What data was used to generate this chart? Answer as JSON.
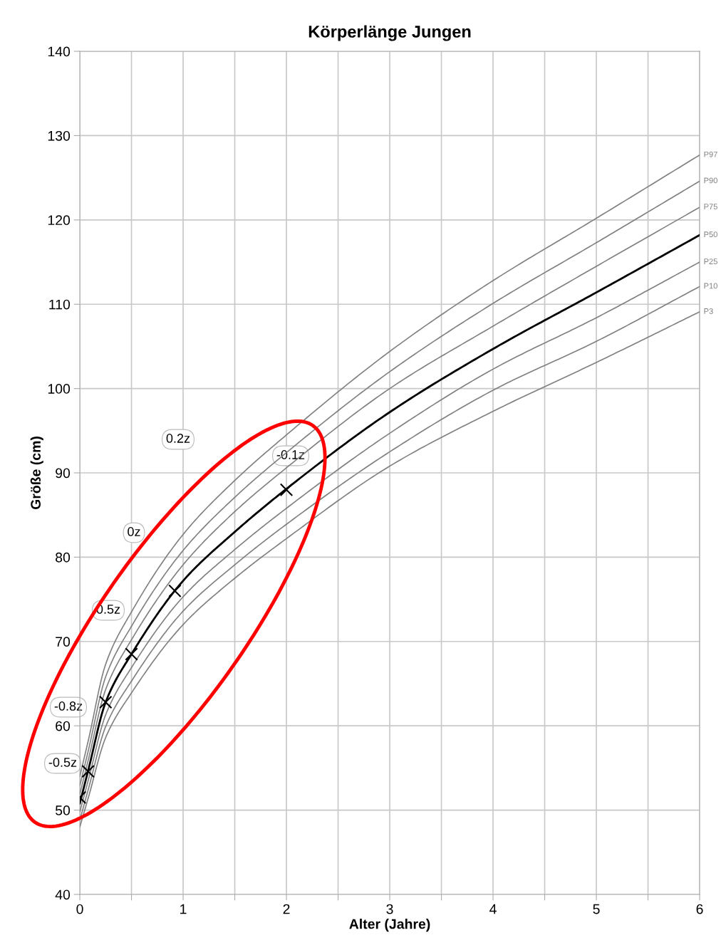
{
  "chart_data": {
    "type": "line",
    "title": "Körperlänge Jungen",
    "xlabel": "Alter (Jahre)",
    "ylabel": "Größe (cm)",
    "xlim": [
      0,
      6
    ],
    "ylim": [
      40,
      140
    ],
    "xticks": [
      0,
      {
        "value": 0.5,
        "label": null
      },
      1,
      {
        "value": 1.5,
        "label": null
      },
      2,
      {
        "value": 2.5,
        "label": null
      },
      3,
      {
        "value": 3.5,
        "label": null
      },
      4,
      {
        "value": 4.5,
        "label": null
      },
      5,
      {
        "value": 5.5,
        "label": null
      },
      6
    ],
    "yticks": [
      40,
      50,
      60,
      70,
      80,
      90,
      100,
      110,
      120,
      130,
      140
    ],
    "grid": true,
    "legend": false,
    "marker": "none",
    "line_style": "solid",
    "x": [
      0,
      0.083,
      0.25,
      0.5,
      1,
      1.5,
      2,
      3,
      4,
      5,
      6
    ],
    "series": [
      {
        "name": "P97",
        "color": "#808080",
        "values": [
          54.0,
          58.3,
          67.3,
          73.5,
          82.7,
          89.1,
          94.5,
          104.4,
          112.8,
          120.2,
          127.7
        ]
      },
      {
        "name": "P90",
        "color": "#808080",
        "values": [
          52.9,
          57.1,
          65.8,
          71.8,
          80.8,
          87.1,
          92.4,
          102.0,
          110.1,
          117.3,
          124.6
        ]
      },
      {
        "name": "P75",
        "color": "#808080",
        "values": [
          51.9,
          56.0,
          64.3,
          70.2,
          79.1,
          85.4,
          90.6,
          100.0,
          107.4,
          114.5,
          121.5
        ]
      },
      {
        "name": "P50",
        "color": "#000000",
        "values": [
          50.8,
          54.8,
          62.8,
          68.5,
          77.2,
          83.0,
          88.1,
          97.2,
          104.7,
          111.4,
          118.2
        ]
      },
      {
        "name": "P25",
        "color": "#808080",
        "values": [
          49.8,
          53.6,
          61.3,
          66.9,
          75.3,
          80.9,
          85.8,
          94.7,
          102.3,
          108.4,
          115.0
        ]
      },
      {
        "name": "P10",
        "color": "#808080",
        "values": [
          48.8,
          52.5,
          59.9,
          65.3,
          73.6,
          79.1,
          83.9,
          92.5,
          99.8,
          105.6,
          112.1
        ]
      },
      {
        "name": "P3",
        "color": "#808080",
        "values": [
          48.0,
          51.5,
          58.6,
          63.9,
          72.0,
          77.5,
          82.2,
          90.8,
          97.3,
          103.1,
          109.1
        ]
      },
      {
        "type": "scatter",
        "marker": "cross",
        "color": "#000000",
        "x": [
          0,
          0.08,
          0.25,
          0.5,
          0.92,
          2
        ],
        "values": [
          51.5,
          54.6,
          62.8,
          68.5,
          76.0,
          88.0
        ]
      }
    ],
    "annotations": [
      "0.2z",
      "-0.1z",
      "0z",
      "0.5z",
      "-0.8z",
      "-0.5z"
    ]
  }
}
